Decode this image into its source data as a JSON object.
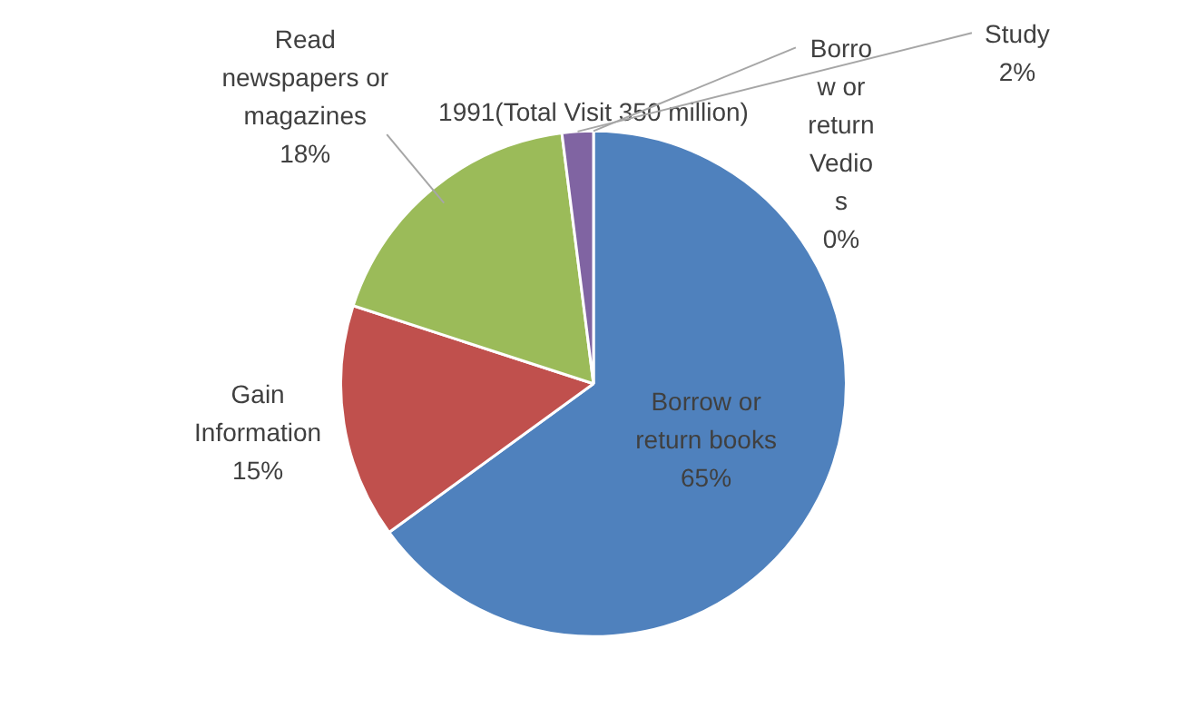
{
  "chart_data": {
    "type": "pie",
    "title": "1991(Total Visit 350 million)",
    "categories": [
      "Borrow or return books",
      "Gain Information",
      "Read newspapers or magazines",
      "Study",
      "Borrow or return Vedios"
    ],
    "values": [
      65,
      15,
      18,
      2,
      0
    ],
    "colors": [
      "#4f81bd",
      "#c0504d",
      "#9bbb59",
      "#8064a2",
      "#4bacc6"
    ],
    "value_labels": [
      "65%",
      "15%",
      "18%",
      "2%",
      "0%"
    ],
    "legend": false
  }
}
